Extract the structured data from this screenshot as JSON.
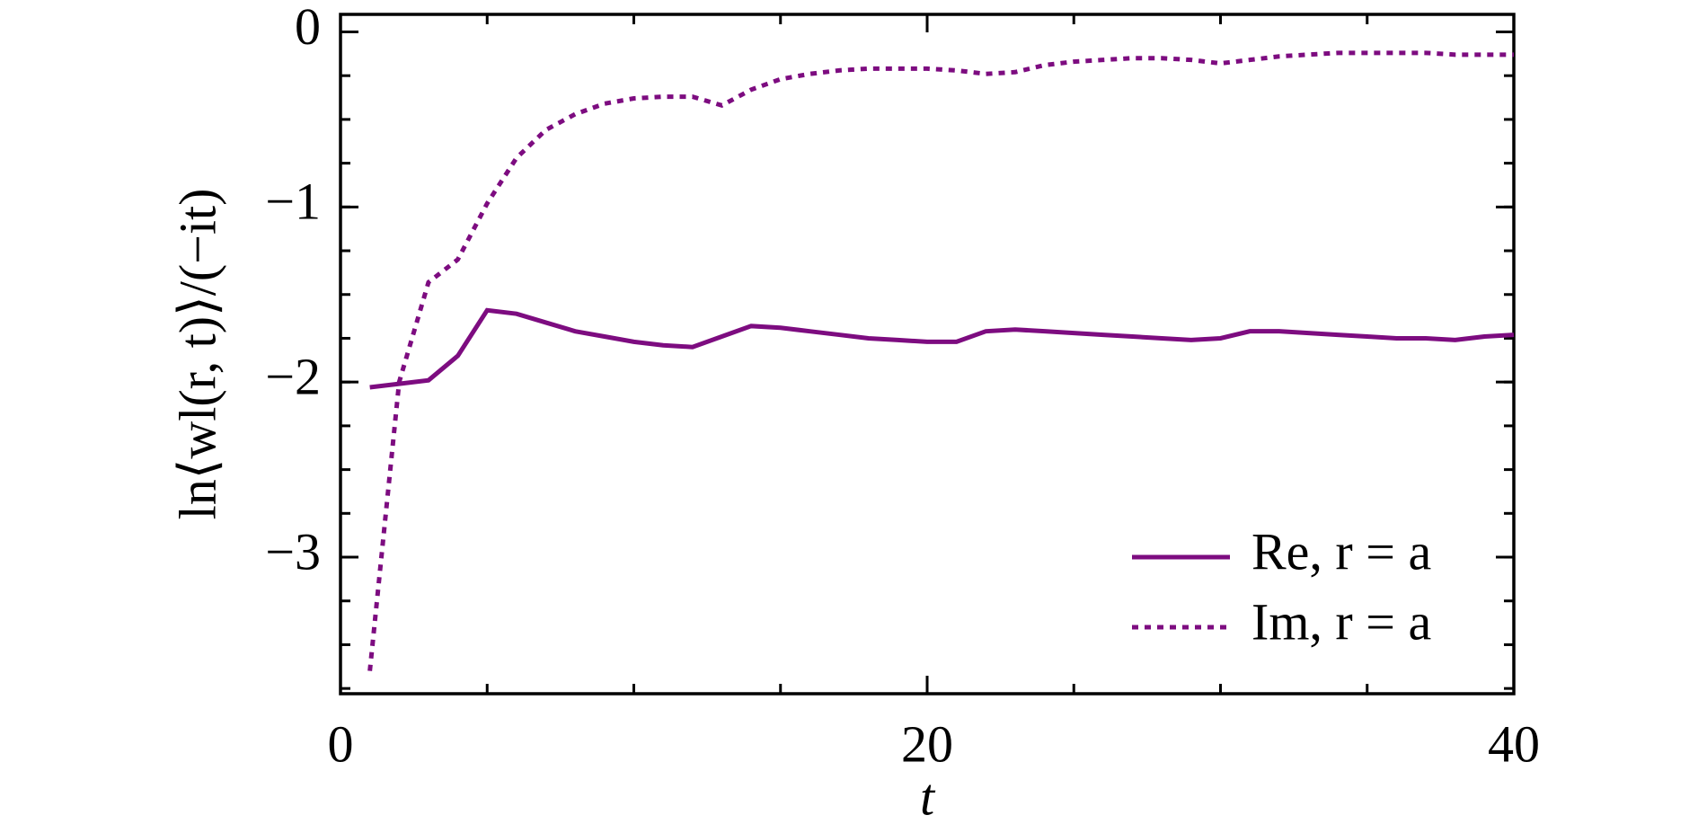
{
  "chart_data": {
    "type": "line",
    "xlabel": "t",
    "ylabel": "ln⟨wl(r, t)⟩/(−it)",
    "x": [
      1,
      2,
      3,
      4,
      5,
      6,
      7,
      8,
      9,
      10,
      11,
      12,
      13,
      14,
      15,
      16,
      17,
      18,
      19,
      20,
      21,
      22,
      23,
      24,
      25,
      26,
      27,
      28,
      29,
      30,
      31,
      32,
      33,
      34,
      35,
      36,
      37,
      38,
      39,
      40
    ],
    "series": [
      {
        "name": "Re, r = a",
        "color": "#7d0c80",
        "linestyle": "solid",
        "values": [
          -2.03,
          -2.01,
          -1.99,
          -1.85,
          -1.59,
          -1.61,
          -1.66,
          -1.71,
          -1.74,
          -1.77,
          -1.79,
          -1.8,
          -1.74,
          -1.68,
          -1.69,
          -1.71,
          -1.73,
          -1.75,
          -1.76,
          -1.77,
          -1.77,
          -1.71,
          -1.7,
          -1.71,
          -1.72,
          -1.73,
          -1.74,
          -1.75,
          -1.76,
          -1.75,
          -1.71,
          -1.71,
          -1.72,
          -1.73,
          -1.74,
          -1.75,
          -1.75,
          -1.76,
          -1.74,
          -1.73
        ]
      },
      {
        "name": "Im, r = a",
        "color": "#7d0c80",
        "linestyle": "dotted",
        "values": [
          -3.65,
          -2.0,
          -1.43,
          -1.3,
          -0.98,
          -0.72,
          -0.56,
          -0.47,
          -0.41,
          -0.38,
          -0.37,
          -0.37,
          -0.42,
          -0.33,
          -0.27,
          -0.24,
          -0.22,
          -0.21,
          -0.21,
          -0.21,
          -0.22,
          -0.24,
          -0.23,
          -0.19,
          -0.17,
          -0.16,
          -0.15,
          -0.15,
          -0.16,
          -0.18,
          -0.16,
          -0.14,
          -0.13,
          -0.12,
          -0.12,
          -0.12,
          -0.12,
          -0.13,
          -0.13,
          -0.13
        ]
      }
    ],
    "xlim": [
      0,
      40
    ],
    "xticks": [
      0,
      20,
      40
    ],
    "ylim": [
      -3.78,
      0.1
    ],
    "yticks": [
      0,
      {
        "value": -1,
        "label": "−1"
      },
      {
        "value": -2,
        "label": "−2"
      },
      {
        "value": -3,
        "label": "−3"
      }
    ],
    "legend": "lower right"
  }
}
